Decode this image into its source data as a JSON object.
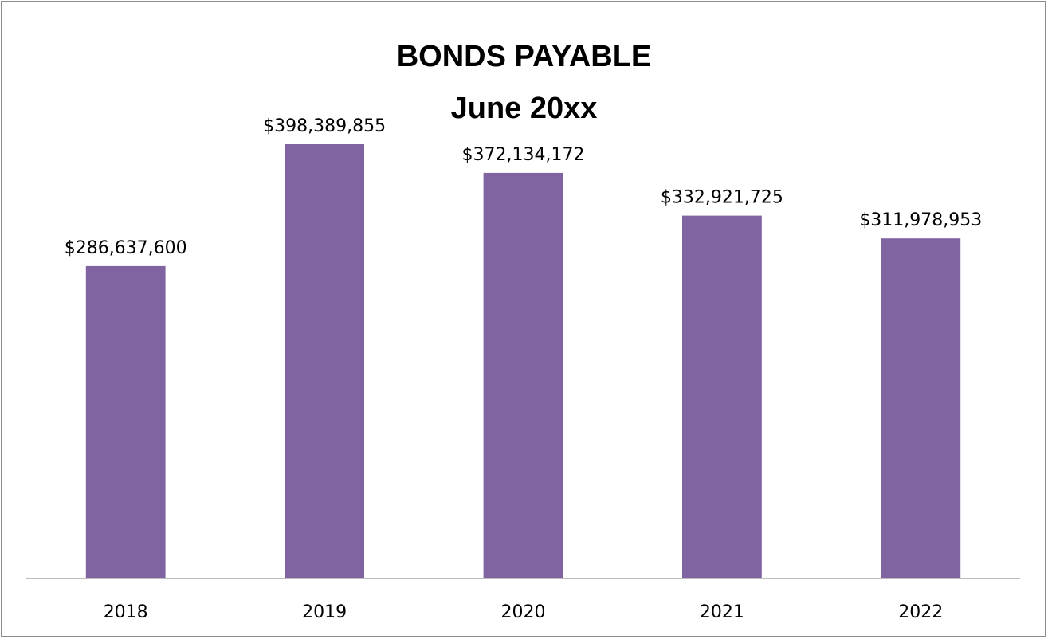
{
  "chart_data": {
    "type": "bar",
    "title": "BONDS PAYABLE",
    "subtitle": "June 20xx",
    "categories": [
      "2018",
      "2019",
      "2020",
      "2021",
      "2022"
    ],
    "values": [
      286637600,
      398389855,
      372134172,
      332921725,
      311978953
    ],
    "data_labels": [
      "$286,637,600",
      "$398,389,855",
      "$372,134,172",
      "$332,921,725",
      "$311,978,953"
    ],
    "xlabel": "",
    "ylabel": "",
    "ylim": [
      0,
      500000000
    ],
    "grid": false,
    "legend": "none",
    "bar_color": "#8064A2"
  }
}
